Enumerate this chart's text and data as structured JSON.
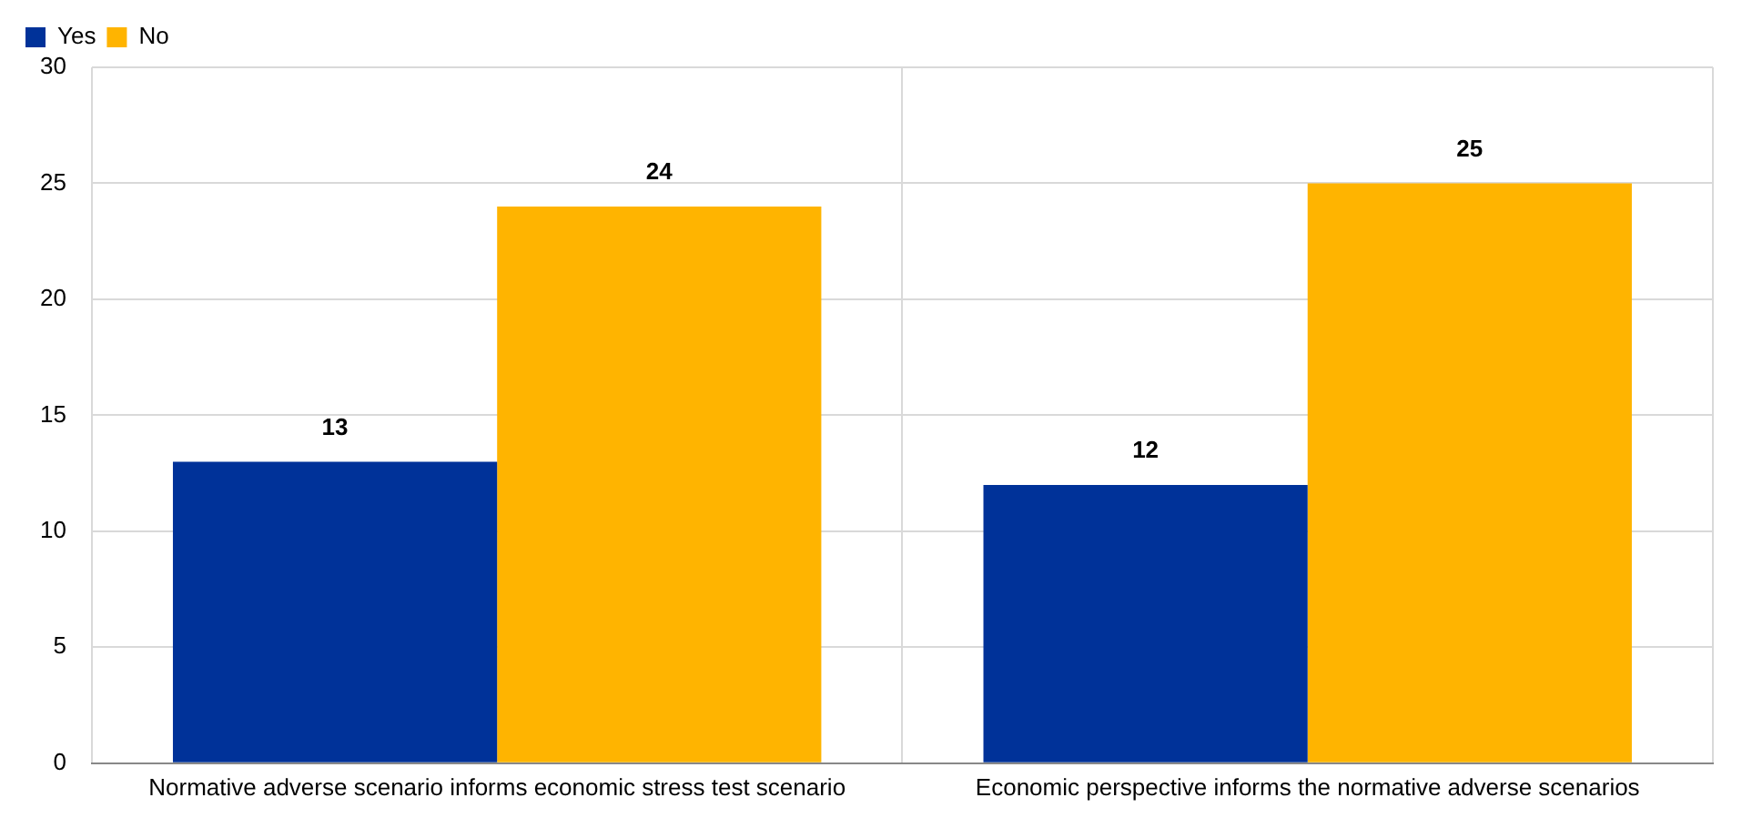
{
  "chart_data": {
    "type": "bar",
    "categories": [
      "Normative adverse scenario informs economic stress test scenario",
      "Economic perspective informs the normative adverse scenarios"
    ],
    "series": [
      {
        "name": "Yes",
        "color": "#003299",
        "values": [
          13,
          12
        ]
      },
      {
        "name": "No",
        "color": "#ffb400",
        "values": [
          24,
          25
        ]
      }
    ],
    "ylim": [
      0,
      30
    ],
    "yticks": [
      0,
      5,
      10,
      15,
      20,
      25,
      30
    ],
    "grid": true,
    "legend": "top left",
    "data_labels": true
  }
}
